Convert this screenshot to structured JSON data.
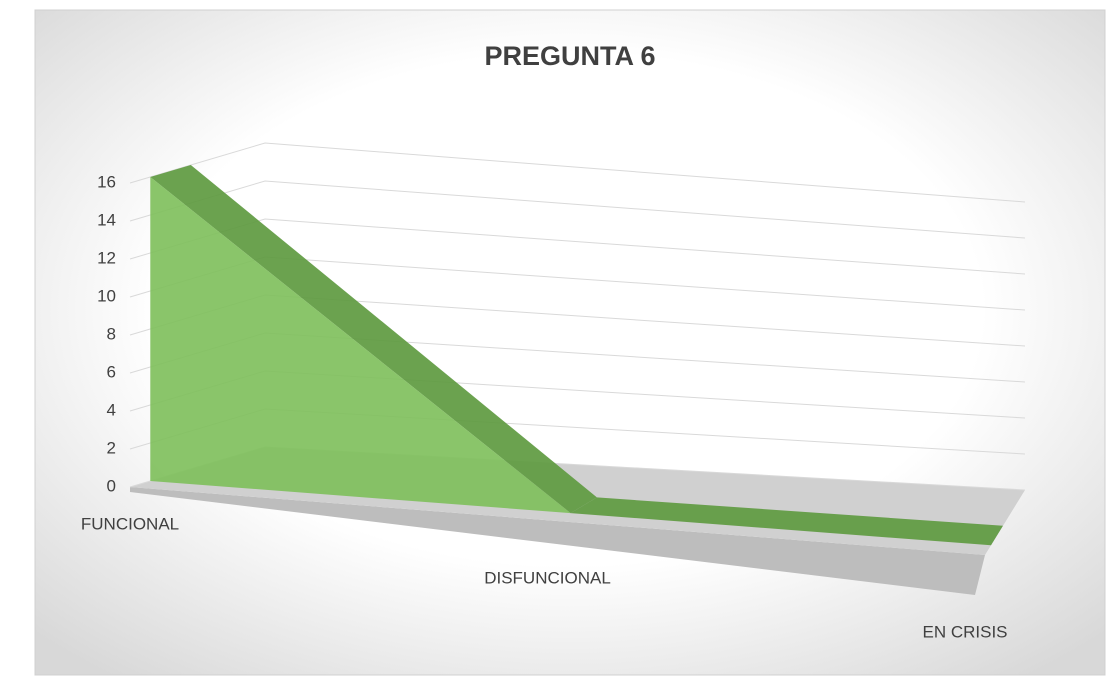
{
  "chart_data": {
    "type": "area3d",
    "title": "PREGUNTA 6",
    "categories": [
      "FUNCIONAL",
      "DISFUNCIONAL",
      "EN CRISIS"
    ],
    "values": [
      16,
      0,
      0
    ],
    "color": "#7dbf5a",
    "ylim": [
      0,
      16
    ],
    "yticks": [
      0,
      2,
      4,
      6,
      8,
      10,
      12,
      14,
      16
    ],
    "grid": true
  }
}
